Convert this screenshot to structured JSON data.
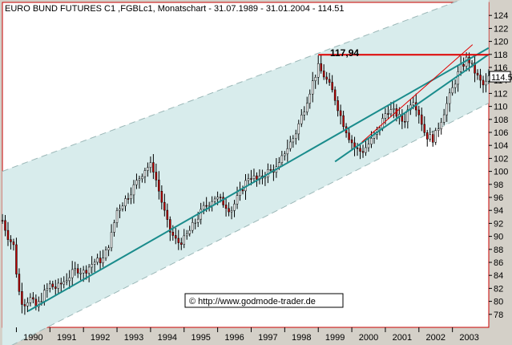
{
  "chart_data": {
    "type": "candlestick",
    "title": "EURO BUND FUTURES C1 ,FGBLc1, Monatschart - 31.07.1989 - 31.01.2004 - 114.51",
    "last_price": "114.51",
    "level_label": "117,94",
    "level_value": 117.94,
    "watermark": "© http://www.godmode-trader.de",
    "ylim": [
      76,
      126
    ],
    "y_ticks": [
      78,
      80,
      82,
      84,
      86,
      88,
      90,
      92,
      94,
      96,
      98,
      100,
      102,
      104,
      106,
      108,
      110,
      112,
      114,
      116,
      118,
      120,
      122,
      124
    ],
    "x_start": 1989.583,
    "x_end": 2004.083,
    "x_ticks": [
      "1990",
      "1991",
      "1992",
      "1993",
      "1994",
      "1995",
      "1996",
      "1997",
      "1998",
      "1999",
      "2000",
      "2001",
      "2002",
      "2003"
    ],
    "price_path": [
      [
        1989.58,
        92.5
      ],
      [
        1989.75,
        90.0
      ],
      [
        1989.92,
        88.5
      ],
      [
        1990.05,
        82.0
      ],
      [
        1990.2,
        79.5
      ],
      [
        1990.4,
        80.5
      ],
      [
        1990.6,
        79.0
      ],
      [
        1990.8,
        81.0
      ],
      [
        1991.0,
        82.5
      ],
      [
        1991.2,
        82.0
      ],
      [
        1991.5,
        83.5
      ],
      [
        1991.8,
        85.0
      ],
      [
        1992.0,
        84.5
      ],
      [
        1992.3,
        86.0
      ],
      [
        1992.6,
        86.5
      ],
      [
        1992.8,
        89.5
      ],
      [
        1993.0,
        94.0
      ],
      [
        1993.3,
        96.0
      ],
      [
        1993.6,
        98.5
      ],
      [
        1993.85,
        100.5
      ],
      [
        1994.05,
        101.0
      ],
      [
        1994.3,
        96.0
      ],
      [
        1994.55,
        91.0
      ],
      [
        1994.8,
        89.0
      ],
      [
        1995.0,
        89.5
      ],
      [
        1995.3,
        92.0
      ],
      [
        1995.6,
        94.5
      ],
      [
        1995.9,
        96.0
      ],
      [
        1996.1,
        95.5
      ],
      [
        1996.4,
        94.0
      ],
      [
        1996.7,
        97.0
      ],
      [
        1996.95,
        99.5
      ],
      [
        1997.2,
        98.5
      ],
      [
        1997.5,
        100.0
      ],
      [
        1997.8,
        100.5
      ],
      [
        1998.0,
        103.0
      ],
      [
        1998.3,
        105.5
      ],
      [
        1998.6,
        110.0
      ],
      [
        1998.85,
        114.0
      ],
      [
        1999.0,
        116.0
      ],
      [
        1999.2,
        114.5
      ],
      [
        1999.45,
        112.0
      ],
      [
        1999.7,
        108.0
      ],
      [
        1999.9,
        105.5
      ],
      [
        2000.1,
        103.5
      ],
      [
        2000.3,
        103.0
      ],
      [
        2000.55,
        104.5
      ],
      [
        2000.8,
        106.5
      ],
      [
        2001.05,
        109.5
      ],
      [
        2001.3,
        109.0
      ],
      [
        2001.55,
        107.5
      ],
      [
        2001.8,
        111.5
      ],
      [
        2002.0,
        109.0
      ],
      [
        2002.2,
        105.5
      ],
      [
        2002.45,
        105.0
      ],
      [
        2002.7,
        108.5
      ],
      [
        2002.95,
        112.0
      ],
      [
        2003.2,
        115.5
      ],
      [
        2003.45,
        117.5
      ],
      [
        2003.6,
        116.0
      ],
      [
        2003.8,
        114.0
      ],
      [
        2003.95,
        113.0
      ],
      [
        2004.08,
        114.5
      ]
    ],
    "channel_lower_line": [
      [
        1990.35,
        78.5
      ],
      [
        2004.08,
        119.0
      ]
    ],
    "channel_upper_line": [
      [
        1999.5,
        101.5
      ],
      [
        2004.08,
        118.0
      ]
    ],
    "resistance_line": [
      [
        1999.0,
        117.94
      ],
      [
        2004.08,
        117.94
      ]
    ],
    "trend_line_red": [
      [
        2000.3,
        104.5
      ],
      [
        2003.6,
        119.5
      ]
    ],
    "channel_band_top": [
      [
        1989.58,
        100.0
      ],
      [
        2004.08,
        128.0
      ]
    ],
    "channel_band_bottom": [
      [
        1989.58,
        72.5
      ],
      [
        2004.08,
        110.5
      ]
    ]
  }
}
